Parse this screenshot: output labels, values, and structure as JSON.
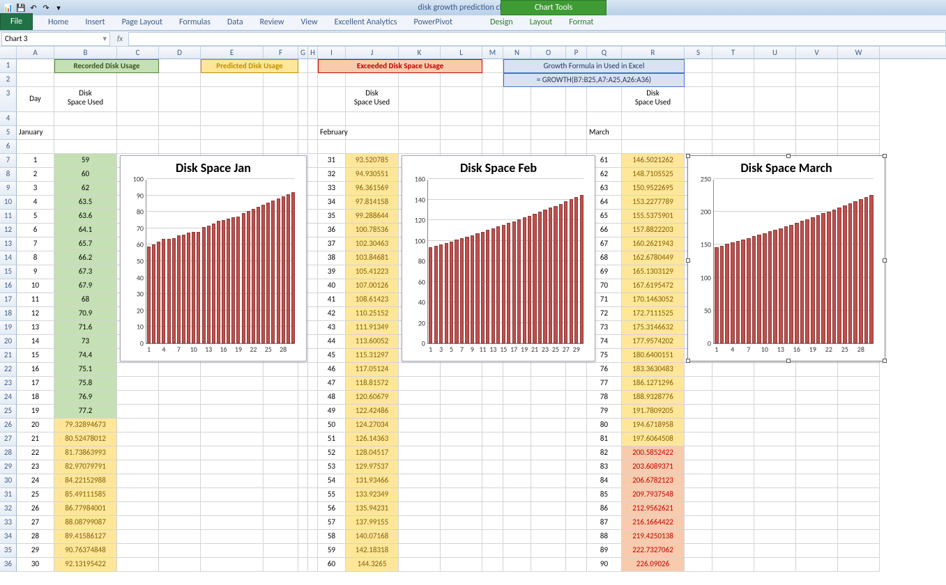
{
  "titlebar": {
    "title": "disk growth prediction charts.xlsx - Microsoft Excel",
    "chart_tools": "Chart Tools"
  },
  "ribbon": {
    "file": "File",
    "tabs": [
      "Home",
      "Insert",
      "Page Layout",
      "Formulas",
      "Data",
      "Review",
      "View",
      "Excellent Analytics",
      "PowerPivot"
    ],
    "ctx_tabs": [
      "Design",
      "Layout",
      "Format"
    ]
  },
  "namebox": "Chart 3",
  "fx_label": "fx",
  "columns": {
    "A": 54,
    "B": 90,
    "C": 60,
    "D": 60,
    "E": 90,
    "F": 50,
    "G": 14,
    "H": 14,
    "I": 40,
    "J": 76,
    "K": 60,
    "L": 60,
    "M": 30,
    "N": 40,
    "O": 50,
    "P": 30,
    "Q": 50,
    "R": 90,
    "S": 40,
    "T": 60,
    "U": 60,
    "V": 60,
    "W": 60
  },
  "headers": {
    "recorded": "Recorded Disk Usage",
    "predicted": "Predicted Disk Usage",
    "exceeded": "Exceeded Disk Space Usage",
    "formula_title": "Growth Formula in Used in Excel",
    "formula_text": "= GROWTH(B7:B25,A7:A25,A26:A36)",
    "day": "Day",
    "dsu": "Disk Space Used",
    "jan": "January",
    "feb": "February",
    "mar": "March"
  },
  "jan": {
    "title": "Disk Space Jan",
    "days": [
      1,
      2,
      3,
      4,
      5,
      6,
      7,
      8,
      9,
      10,
      11,
      12,
      13,
      14,
      15,
      16,
      17,
      18,
      19,
      20,
      21,
      22,
      23,
      24,
      25,
      26,
      27,
      28,
      29,
      30
    ],
    "values_green": [
      "59",
      "60",
      "62",
      "63.5",
      "63.6",
      "64.1",
      "65.7",
      "66.2",
      "67.3",
      "67.9",
      "68",
      "70.9",
      "71.6",
      "73",
      "74.4",
      "75.1",
      "75.8",
      "76.9",
      "77.2"
    ],
    "values_orange": [
      "79.32894673",
      "80.52478012",
      "81.73863993",
      "82.97079791",
      "84.22152988",
      "85.49111585",
      "86.77984001",
      "88.08799087",
      "89.41586127",
      "90.76374848",
      "92.13195422"
    ],
    "chart": {
      "ymax": 100,
      "yticks": [
        0,
        10,
        20,
        30,
        40,
        50,
        60,
        70,
        80,
        90,
        100
      ],
      "xticks": [
        1,
        4,
        7,
        10,
        13,
        16,
        19,
        22,
        25,
        28
      ],
      "bar_color": "#c0504d",
      "bar_border": "#8c3836",
      "grid_color": "#d0d0d0",
      "values": [
        59,
        60,
        62,
        63.5,
        63.6,
        64.1,
        65.7,
        66.2,
        67.3,
        67.9,
        68,
        70.9,
        71.6,
        73,
        74.4,
        75.1,
        75.8,
        76.9,
        77.2,
        79.3,
        80.5,
        81.7,
        83.0,
        84.2,
        85.5,
        86.8,
        88.1,
        89.4,
        90.8,
        92.1
      ]
    }
  },
  "feb": {
    "title": "Disk Space Feb",
    "days": [
      31,
      32,
      33,
      34,
      35,
      36,
      37,
      38,
      39,
      40,
      41,
      42,
      43,
      44,
      45,
      46,
      47,
      48,
      49,
      50,
      51,
      52,
      53,
      54,
      55,
      56,
      57,
      58,
      59,
      60
    ],
    "values": [
      "93.520785",
      "94.930551",
      "96.361569",
      "97.814158",
      "99.288644",
      "100.78536",
      "102.30463",
      "103.84681",
      "105.41223",
      "107.00126",
      "108.61423",
      "110.25152",
      "111.91349",
      "113.60052",
      "115.31297",
      "117.05124",
      "118.81572",
      "120.60679",
      "122.42486",
      "124.27034",
      "126.14363",
      "128.04517",
      "129.97537",
      "131.93466",
      "133.92349",
      "135.94231",
      "137.99155",
      "140.07168",
      "142.18318",
      "144.3265"
    ],
    "chart": {
      "ymax": 160,
      "yticks": [
        0,
        20,
        40,
        60,
        80,
        100,
        120,
        140,
        160
      ],
      "xticks": [
        1,
        3,
        5,
        7,
        9,
        11,
        13,
        15,
        17,
        19,
        21,
        23,
        25,
        27,
        29
      ],
      "bar_color": "#c0504d",
      "bar_border": "#8c3836",
      "grid_color": "#d0d0d0",
      "values": [
        93.5,
        94.9,
        96.4,
        97.8,
        99.3,
        100.8,
        102.3,
        103.8,
        105.4,
        107.0,
        108.6,
        110.3,
        111.9,
        113.6,
        115.3,
        117.1,
        118.8,
        120.6,
        122.4,
        124.3,
        126.1,
        128.0,
        130.0,
        131.9,
        133.9,
        135.9,
        138.0,
        140.1,
        142.2,
        144.3
      ]
    }
  },
  "mar": {
    "title": "Disk Space March",
    "days": [
      61,
      62,
      63,
      64,
      65,
      66,
      67,
      68,
      69,
      70,
      71,
      72,
      73,
      74,
      75,
      76,
      77,
      78,
      79,
      80,
      81,
      82,
      83,
      84,
      85,
      86,
      87,
      88,
      89,
      90
    ],
    "values_orange": [
      "146.5021262",
      "148.7105525",
      "150.9522695",
      "153.2277789",
      "155.5375901",
      "157.8822203",
      "160.2621943",
      "162.6780449",
      "165.1303129",
      "167.6195472",
      "170.1463052",
      "172.7111525",
      "175.3146632",
      "177.9574202",
      "180.6400151",
      "183.3630483",
      "186.1271296",
      "188.9328776",
      "191.7809205",
      "194.6718958",
      "197.6064508"
    ],
    "values_pink": [
      "200.5852422",
      "203.6089371",
      "206.6782123",
      "209.7937548",
      "212.9562621",
      "216.1664422",
      "219.4250138",
      "222.7327062",
      "226.09026"
    ],
    "chart": {
      "ymax": 250,
      "yticks": [
        0,
        50,
        100,
        150,
        200,
        250
      ],
      "xticks": [
        1,
        4,
        7,
        10,
        13,
        16,
        19,
        22,
        25,
        28
      ],
      "bar_color": "#c0504d",
      "bar_border": "#8c3836",
      "grid_color": "#d0d0d0",
      "values": [
        146.5,
        148.7,
        151.0,
        153.2,
        155.5,
        157.9,
        160.3,
        162.7,
        165.1,
        167.6,
        170.1,
        172.7,
        175.3,
        178.0,
        180.6,
        183.4,
        186.1,
        188.9,
        191.8,
        194.7,
        197.6,
        200.6,
        203.6,
        206.7,
        209.8,
        213.0,
        216.2,
        219.4,
        222.7,
        226.1
      ]
    }
  }
}
